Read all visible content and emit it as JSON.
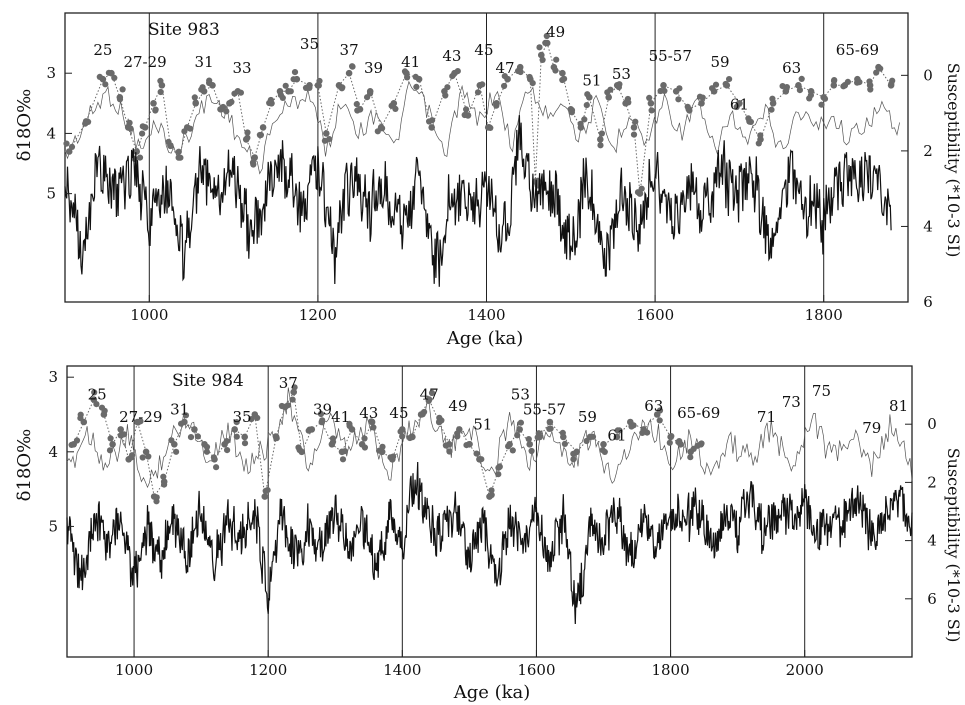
{
  "chart_data": [
    {
      "type": "line",
      "site_label": "Site 983",
      "xlabel": "Age (ka)",
      "ylabel_left": "δ18O‰",
      "ylabel_right": "Susceptibility (*10-3 SI)",
      "xlim": [
        900,
        1900
      ],
      "x_ticks": [
        1000,
        1200,
        1400,
        1600,
        1800
      ],
      "x_tick_labels": [
        "1000",
        "1200",
        "1400",
        "1600",
        "1800"
      ],
      "vlines": [
        1000,
        1200,
        1400,
        1600,
        1800
      ],
      "d18o_lim": [
        2.0,
        6.8
      ],
      "d18o_ticks": [
        3,
        4,
        5
      ],
      "d18o_tick_labels": [
        "3",
        "4",
        "5"
      ],
      "sus_lim": [
        -1.65,
        6.0
      ],
      "sus_ticks": [
        0,
        2,
        4,
        6
      ],
      "sus_tick_labels": [
        "0",
        "2",
        "4",
        "6"
      ],
      "stage_labels": [
        {
          "text": "25",
          "age": 945,
          "d18o": 2.7
        },
        {
          "text": "27-29",
          "age": 995,
          "d18o": 2.9
        },
        {
          "text": "31",
          "age": 1065,
          "d18o": 2.9
        },
        {
          "text": "33",
          "age": 1110,
          "d18o": 3.0
        },
        {
          "text": "35",
          "age": 1190,
          "d18o": 2.6
        },
        {
          "text": "37",
          "age": 1237,
          "d18o": 2.7
        },
        {
          "text": "39",
          "age": 1266,
          "d18o": 3.0
        },
        {
          "text": "41",
          "age": 1310,
          "d18o": 2.9
        },
        {
          "text": "43",
          "age": 1359,
          "d18o": 2.8
        },
        {
          "text": "45",
          "age": 1397,
          "d18o": 2.7
        },
        {
          "text": "47",
          "age": 1422,
          "d18o": 3.0
        },
        {
          "text": "49",
          "age": 1482,
          "d18o": 2.4
        },
        {
          "text": "51",
          "age": 1525,
          "d18o": 3.2
        },
        {
          "text": "53",
          "age": 1560,
          "d18o": 3.1
        },
        {
          "text": "55-57",
          "age": 1618,
          "d18o": 2.8
        },
        {
          "text": "59",
          "age": 1677,
          "d18o": 2.9
        },
        {
          "text": "61",
          "age": 1700,
          "d18o": 3.6
        },
        {
          "text": "63",
          "age": 1762,
          "d18o": 3.0
        },
        {
          "text": "65-69",
          "age": 1840,
          "d18o": 2.7
        }
      ],
      "series": [
        {
          "style": "dots",
          "x": [
            905,
            925,
            945,
            955,
            965,
            975,
            985,
            995,
            1005,
            1015,
            1025,
            1035,
            1045,
            1055,
            1065,
            1075,
            1085,
            1095,
            1105,
            1115,
            1125,
            1135,
            1145,
            1155,
            1165,
            1175,
            1190,
            1200,
            1210,
            1225,
            1237,
            1250,
            1262,
            1275,
            1290,
            1305,
            1320,
            1335,
            1350,
            1362,
            1378,
            1392,
            1402,
            1412,
            1425,
            1440,
            1452,
            1458,
            1465,
            1472,
            1480,
            1490,
            1500,
            1512,
            1522,
            1535,
            1545,
            1555,
            1565,
            1575,
            1582,
            1595,
            1610,
            1625,
            1640,
            1655,
            1670,
            1685,
            1700,
            1712,
            1725,
            1740,
            1755,
            1770,
            1785,
            1800,
            1812,
            1825,
            1840,
            1855,
            1865,
            1880
          ],
          "values": [
            4.3,
            3.8,
            3.1,
            3.0,
            3.4,
            3.9,
            4.3,
            3.9,
            3.5,
            3.2,
            4.2,
            4.4,
            3.9,
            3.5,
            3.3,
            3.2,
            3.6,
            3.5,
            3.3,
            4.1,
            4.4,
            3.9,
            3.5,
            3.3,
            3.3,
            3.1,
            3.2,
            3.2,
            4.0,
            3.2,
            3.0,
            3.6,
            3.3,
            3.9,
            3.5,
            3.0,
            3.1,
            3.9,
            3.3,
            3.0,
            3.7,
            3.2,
            3.9,
            3.5,
            3.1,
            2.9,
            3.1,
            4.8,
            2.7,
            2.5,
            2.9,
            3.0,
            3.6,
            3.9,
            3.4,
            4.1,
            3.4,
            3.2,
            3.5,
            3.9,
            5.0,
            3.5,
            3.2,
            3.3,
            3.6,
            3.5,
            3.3,
            3.2,
            3.5,
            3.8,
            4.1,
            3.5,
            3.3,
            3.2,
            3.3,
            3.4,
            3.2,
            3.2,
            3.1,
            3.2,
            2.9,
            3.2
          ]
        },
        {
          "style": "thin-line",
          "x": [
            900,
            930,
            950,
            970,
            990,
            1010,
            1030,
            1050,
            1070,
            1090,
            1110,
            1130,
            1150,
            1170,
            1190,
            1210,
            1230,
            1250,
            1270,
            1290,
            1310,
            1330,
            1350,
            1370,
            1390,
            1410,
            1430,
            1450,
            1470,
            1490,
            1510,
            1530,
            1550,
            1570,
            1590,
            1610,
            1630,
            1650,
            1670,
            1690,
            1710,
            1730,
            1750,
            1770,
            1790,
            1810,
            1830,
            1850,
            1870,
            1890
          ],
          "values": [
            4.4,
            3.7,
            3.3,
            3.7,
            4.3,
            3.8,
            4.4,
            3.9,
            3.4,
            3.6,
            4.2,
            4.6,
            3.7,
            3.5,
            3.3,
            4.3,
            3.4,
            4.0,
            3.6,
            4.3,
            3.2,
            3.6,
            4.4,
            3.3,
            3.8,
            3.3,
            4.2,
            3.2,
            3.7,
            3.4,
            4.1,
            3.5,
            4.3,
            3.6,
            4.2,
            3.4,
            4.0,
            3.5,
            4.3,
            3.7,
            4.2,
            3.6,
            4.3,
            3.6,
            3.9,
            3.7,
            4.1,
            3.8,
            3.6,
            3.9
          ]
        },
        {
          "style": "thick-line",
          "axis": "susceptibility",
          "x": [
            900,
            920,
            940,
            960,
            980,
            1000,
            1020,
            1040,
            1060,
            1080,
            1100,
            1120,
            1140,
            1160,
            1180,
            1200,
            1220,
            1240,
            1260,
            1280,
            1300,
            1320,
            1340,
            1360,
            1380,
            1400,
            1420,
            1440,
            1460,
            1480,
            1500,
            1520,
            1540,
            1560,
            1580,
            1600,
            1620,
            1640,
            1660,
            1680,
            1700,
            1720,
            1740,
            1760,
            1780,
            1800,
            1820,
            1840,
            1860,
            1880
          ],
          "values": [
            2.6,
            4.8,
            2.2,
            3.2,
            2.4,
            4.0,
            2.8,
            4.9,
            2.3,
            3.1,
            2.5,
            4.4,
            3.0,
            2.3,
            3.4,
            2.2,
            4.6,
            2.7,
            3.6,
            2.9,
            4.2,
            2.7,
            5.2,
            3.0,
            3.6,
            2.9,
            4.4,
            1.8,
            3.3,
            3.0,
            4.5,
            2.7,
            5.0,
            3.0,
            4.2,
            2.4,
            3.9,
            2.9,
            3.6,
            2.5,
            3.3,
            2.9,
            4.6,
            2.3,
            3.4,
            3.8,
            2.5,
            3.1,
            2.3,
            4.0
          ]
        }
      ]
    },
    {
      "type": "line",
      "site_label": "Site 984",
      "xlabel": "Age (ka)",
      "ylabel_left": "δ18O‰",
      "ylabel_right": "Susceptibility (*10-3 SI)",
      "xlim": [
        900,
        2160
      ],
      "x_ticks": [
        1000,
        1200,
        1400,
        1600,
        1800,
        2000
      ],
      "x_tick_labels": [
        "1000",
        "1200",
        "1400",
        "1600",
        "1800",
        "2000"
      ],
      "vlines": [
        1000,
        1200,
        1400,
        1600,
        1800,
        2000
      ],
      "d18o_lim": [
        2.85,
        6.75
      ],
      "d18o_ticks": [
        3,
        4,
        5
      ],
      "d18o_tick_labels": [
        "3",
        "4",
        "5"
      ],
      "sus_lim": [
        -2.0,
        8.0
      ],
      "sus_ticks": [
        0,
        2,
        4,
        6
      ],
      "sus_tick_labels": [
        "0",
        "2",
        "4",
        "6"
      ],
      "stage_labels": [
        {
          "text": "25",
          "age": 945,
          "d18o": 3.3
        },
        {
          "text": "27-29",
          "age": 1010,
          "d18o": 3.6
        },
        {
          "text": "31",
          "age": 1068,
          "d18o": 3.5
        },
        {
          "text": "35",
          "age": 1161,
          "d18o": 3.6
        },
        {
          "text": "37",
          "age": 1230,
          "d18o": 2.9
        },
        {
          "text": "39",
          "age": 1281,
          "d18o": 3.5
        },
        {
          "text": "41",
          "age": 1308,
          "d18o": 3.6
        },
        {
          "text": "43",
          "age": 1350,
          "d18o": 3.55
        },
        {
          "text": "45",
          "age": 1395,
          "d18o": 3.55
        },
        {
          "text": "47",
          "age": 1440,
          "d18o": 3.3
        },
        {
          "text": "49",
          "age": 1483,
          "d18o": 3.45
        },
        {
          "text": "51",
          "age": 1520,
          "d18o": 3.7
        },
        {
          "text": "53",
          "age": 1576,
          "d18o": 3.3
        },
        {
          "text": "55-57",
          "age": 1612,
          "d18o": 3.5
        },
        {
          "text": "59",
          "age": 1676,
          "d18o": 3.6
        },
        {
          "text": "61",
          "age": 1720,
          "d18o": 3.85
        },
        {
          "text": "63",
          "age": 1775,
          "d18o": 3.45
        },
        {
          "text": "65-69",
          "age": 1842,
          "d18o": 3.55
        },
        {
          "text": "71",
          "age": 1943,
          "d18o": 3.6
        },
        {
          "text": "73",
          "age": 1980,
          "d18o": 3.4
        },
        {
          "text": "75",
          "age": 2025,
          "d18o": 3.25
        },
        {
          "text": "79",
          "age": 2100,
          "d18o": 3.75
        },
        {
          "text": "81",
          "age": 2140,
          "d18o": 3.45
        }
      ],
      "series": [
        {
          "style": "dots",
          "x": [
            910,
            925,
            940,
            955,
            968,
            980,
            992,
            1005,
            1018,
            1030,
            1045,
            1060,
            1075,
            1090,
            1105,
            1120,
            1135,
            1150,
            1165,
            1180,
            1195,
            1212,
            1225,
            1238,
            1250,
            1265,
            1280,
            1295,
            1310,
            1325,
            1340,
            1355,
            1370,
            1385,
            1400,
            1415,
            1428,
            1440,
            1455,
            1470,
            1485,
            1500,
            1515,
            1530,
            1545,
            1560,
            1575,
            1590,
            1605,
            1620,
            1640,
            1660,
            1680,
            1700,
            1720,
            1740,
            1760,
            1780,
            1800,
            1815,
            1830,
            1845
          ],
          "values": [
            3.9,
            3.6,
            3.3,
            3.5,
            3.9,
            3.7,
            4.1,
            3.6,
            4.0,
            4.6,
            4.4,
            3.9,
            3.6,
            3.7,
            3.9,
            4.1,
            3.9,
            3.7,
            3.8,
            3.5,
            4.6,
            3.8,
            3.4,
            3.2,
            4.0,
            3.7,
            3.6,
            3.9,
            4.0,
            3.7,
            3.9,
            3.6,
            4.0,
            4.1,
            3.7,
            3.8,
            3.5,
            3.3,
            3.6,
            3.9,
            3.7,
            3.9,
            4.1,
            4.6,
            4.2,
            3.9,
            3.7,
            3.9,
            3.8,
            3.6,
            3.8,
            4.0,
            3.8,
            3.9,
            3.8,
            3.6,
            3.7,
            3.5,
            3.8,
            3.9,
            4.0,
            3.9
          ]
        },
        {
          "style": "thin-line",
          "x": [
            900,
            930,
            960,
            990,
            1020,
            1050,
            1080,
            1110,
            1140,
            1170,
            1200,
            1230,
            1260,
            1290,
            1320,
            1350,
            1380,
            1410,
            1440,
            1470,
            1500,
            1530,
            1560,
            1590,
            1620,
            1650,
            1680,
            1710,
            1740,
            1770,
            1800,
            1830,
            1860,
            1890,
            1920,
            1950,
            1980,
            2010,
            2040,
            2070,
            2100,
            2130,
            2160
          ],
          "values": [
            4.3,
            3.7,
            4.2,
            3.8,
            4.5,
            3.9,
            3.5,
            4.1,
            3.7,
            4.2,
            3.9,
            3.3,
            4.2,
            3.6,
            4.0,
            3.6,
            4.3,
            3.7,
            3.4,
            4.0,
            3.6,
            4.4,
            3.5,
            4.1,
            3.7,
            4.2,
            3.8,
            4.3,
            3.9,
            3.6,
            4.1,
            3.8,
            4.3,
            3.9,
            4.1,
            3.7,
            4.2,
            3.5,
            4.1,
            3.8,
            4.2,
            3.6,
            4.3
          ]
        },
        {
          "style": "thick-line",
          "axis": "susceptibility",
          "x": [
            900,
            920,
            940,
            960,
            980,
            1000,
            1020,
            1040,
            1060,
            1080,
            1100,
            1120,
            1140,
            1160,
            1180,
            1200,
            1220,
            1240,
            1260,
            1280,
            1300,
            1320,
            1340,
            1360,
            1380,
            1400,
            1420,
            1440,
            1460,
            1480,
            1500,
            1520,
            1540,
            1560,
            1580,
            1600,
            1620,
            1640,
            1660,
            1680,
            1700,
            1720,
            1740,
            1760,
            1780,
            1800,
            1820,
            1840,
            1860,
            1880,
            1900,
            1920,
            1940,
            1960,
            1980,
            2000,
            2020,
            2040,
            2060,
            2080,
            2100,
            2120,
            2140,
            2160
          ],
          "values": [
            3.4,
            5.6,
            3.0,
            4.2,
            3.2,
            5.2,
            3.6,
            4.6,
            3.3,
            4.4,
            3.0,
            4.8,
            3.4,
            4.0,
            3.2,
            5.8,
            2.8,
            4.6,
            3.5,
            4.2,
            3.0,
            4.4,
            3.3,
            4.9,
            3.4,
            4.1,
            1.7,
            3.3,
            3.8,
            2.8,
            4.6,
            3.1,
            5.2,
            3.4,
            4.3,
            3.0,
            4.8,
            3.1,
            6.6,
            3.4,
            4.0,
            2.9,
            4.6,
            3.2,
            4.2,
            3.0,
            3.5,
            2.8,
            4.0,
            3.0,
            3.6,
            2.4,
            3.8,
            3.0,
            3.3,
            2.7,
            3.9,
            3.1,
            3.5,
            2.5,
            3.9,
            3.3,
            2.8,
            3.4
          ]
        }
      ]
    }
  ]
}
